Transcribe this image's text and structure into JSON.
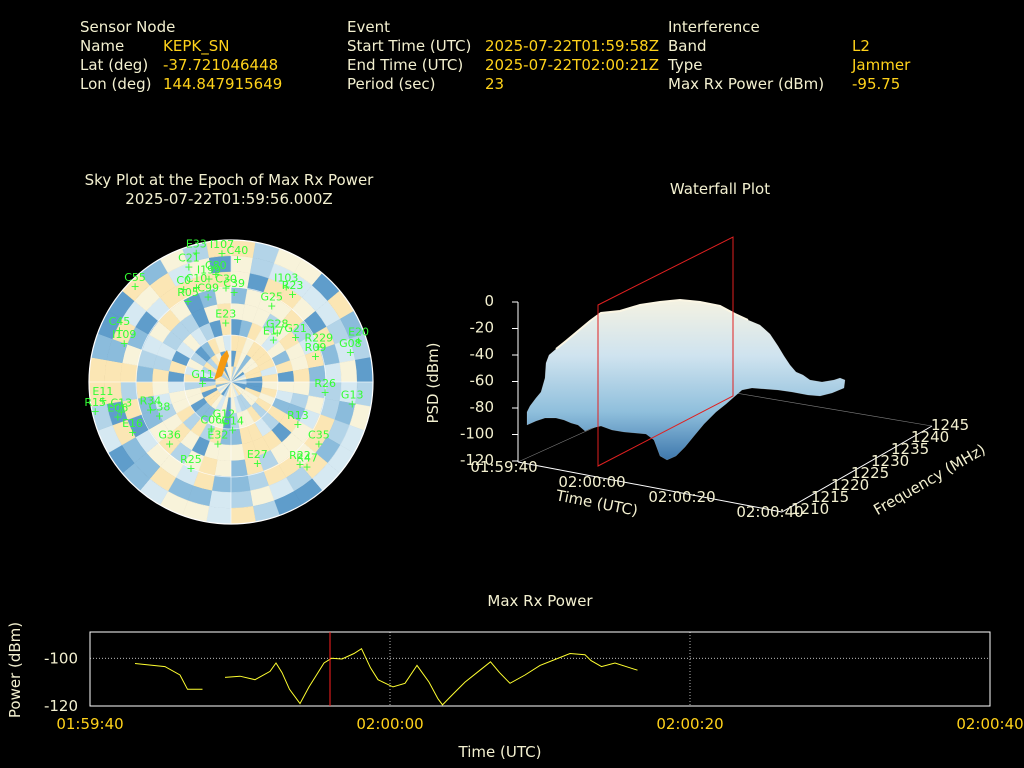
{
  "header": {
    "sensor": {
      "title": "Sensor Node",
      "name_label": "Name",
      "name_value": "KEPK_SN",
      "lat_label": "Lat (deg)",
      "lat_value": "-37.721046448",
      "lon_label": "Lon (deg)",
      "lon_value": "144.847915649"
    },
    "event": {
      "title": "Event",
      "start_label": "Start Time (UTC)",
      "start_value": "2025-07-22T01:59:58Z",
      "end_label": "End Time (UTC)",
      "end_value": "2025-07-22T02:00:21Z",
      "period_label": "Period (sec)",
      "period_value": "23"
    },
    "interference": {
      "title": "Interference",
      "band_label": "Band",
      "band_value": "L2",
      "type_label": "Type",
      "type_value": "Jammer",
      "power_label": "Max Rx Power (dBm)",
      "power_value": "-95.75"
    }
  },
  "sky_plot": {
    "title_line1": "Sky Plot at the Epoch of Max Rx Power",
    "title_line2": "2025-07-22T01:59:56.000Z",
    "satellites": [
      {
        "id": "E33",
        "az": 345,
        "el": 5
      },
      {
        "id": "I107",
        "az": 356,
        "el": 8
      },
      {
        "id": "C40",
        "az": 3,
        "el": 12
      },
      {
        "id": "C21",
        "az": 340,
        "el": 12
      },
      {
        "id": "C55",
        "az": 315,
        "el": 4
      },
      {
        "id": "C0",
        "az": 333,
        "el": 24
      },
      {
        "id": "C10",
        "az": 340,
        "el": 26
      },
      {
        "id": "I199",
        "az": 348,
        "el": 23
      },
      {
        "id": "C80",
        "az": 352,
        "el": 21
      },
      {
        "id": "C30",
        "az": 357,
        "el": 30
      },
      {
        "id": "C39",
        "az": 2,
        "el": 33
      },
      {
        "id": "R05",
        "az": 332,
        "el": 32
      },
      {
        "id": "C99",
        "az": 345,
        "el": 34
      },
      {
        "id": "E23",
        "az": 355,
        "el": 52
      },
      {
        "id": "I103",
        "az": 30,
        "el": 20
      },
      {
        "id": "R23",
        "az": 35,
        "el": 22
      },
      {
        "id": "G25",
        "az": 28,
        "el": 35
      },
      {
        "id": "G28",
        "az": 43,
        "el": 47
      },
      {
        "id": "G21",
        "az": 55,
        "el": 40
      },
      {
        "id": "E17",
        "az": 45,
        "el": 52
      },
      {
        "id": "R229",
        "az": 68,
        "el": 30
      },
      {
        "id": "R09",
        "az": 73,
        "el": 34
      },
      {
        "id": "G08",
        "az": 76,
        "el": 12
      },
      {
        "id": "E20",
        "az": 72,
        "el": 5
      },
      {
        "id": "G11",
        "az": 268,
        "el": 72
      },
      {
        "id": "C45",
        "az": 295,
        "el": 12
      },
      {
        "id": "I109",
        "az": 290,
        "el": 18
      },
      {
        "id": "E11",
        "az": 262,
        "el": 8
      },
      {
        "id": "R15",
        "az": 258,
        "el": 2
      },
      {
        "id": "C13",
        "az": 255,
        "el": 18
      },
      {
        "id": "R34",
        "az": 251,
        "el": 36
      },
      {
        "id": "E06",
        "az": 253,
        "el": 15
      },
      {
        "id": "C38",
        "az": 245,
        "el": 40
      },
      {
        "id": "E16",
        "az": 243,
        "el": 20
      },
      {
        "id": "G36",
        "az": 225,
        "el": 35
      },
      {
        "id": "C06",
        "az": 203,
        "el": 58
      },
      {
        "id": "G12",
        "az": 190,
        "el": 64
      },
      {
        "id": "E32",
        "az": 192,
        "el": 50
      },
      {
        "id": "G14",
        "az": 178,
        "el": 60
      },
      {
        "id": "R26",
        "az": 96,
        "el": 30
      },
      {
        "id": "G13",
        "az": 100,
        "el": 12
      },
      {
        "id": "R13",
        "az": 122,
        "el": 40
      },
      {
        "id": "C35",
        "az": 125,
        "el": 22
      },
      {
        "id": "E27",
        "az": 162,
        "el": 36
      },
      {
        "id": "R22",
        "az": 140,
        "el": 22
      },
      {
        "id": "R47",
        "az": 138,
        "el": 18
      },
      {
        "id": "R25",
        "az": 205,
        "el": 30
      }
    ]
  },
  "waterfall": {
    "title": "Waterfall Plot",
    "zlabel": "PSD (dBm)",
    "xlabel": "Time (UTC)",
    "ylabel": "Frequency (MHz)",
    "z_ticks": [
      "0",
      "-20",
      "-40",
      "-60",
      "-80",
      "-100",
      "-120"
    ],
    "time_ticks": [
      "01:59:40",
      "02:00:00",
      "02:00:20",
      "02:00:40"
    ],
    "freq_ticks": [
      "1210",
      "1215",
      "1220",
      "1225",
      "1230",
      "1235",
      "1240",
      "1245"
    ]
  },
  "chart_data": {
    "type": "line",
    "title": "Max Rx Power",
    "xlabel": "Time (UTC)",
    "ylabel": "Power (dBm)",
    "x_tick_labels": [
      "01:59:40",
      "02:00:00",
      "02:00:20",
      "02:00:40"
    ],
    "y_tick_labels": [
      "-100",
      "-120"
    ],
    "xlim_sec": [
      0,
      60
    ],
    "ylim": [
      -120,
      -89
    ],
    "segments": [
      [
        [
          3,
          -102.2
        ],
        [
          5,
          -103.5
        ],
        [
          6,
          -107.0
        ],
        [
          6.5,
          -113.0
        ],
        [
          7.5,
          -113.0
        ]
      ],
      [
        [
          9,
          -108.0
        ],
        [
          10,
          -107.5
        ],
        [
          11,
          -109.0
        ],
        [
          12,
          -105.5
        ],
        [
          12.4,
          -102.0
        ],
        [
          12.8,
          -106.0
        ],
        [
          13.3,
          -113.0
        ],
        [
          14,
          -119.0
        ],
        [
          14.6,
          -112.0
        ],
        [
          15,
          -108.0
        ],
        [
          15.6,
          -102.0
        ],
        [
          16.1,
          -100.0
        ],
        [
          16.8,
          -100.3
        ],
        [
          17.6,
          -98.0
        ],
        [
          18.1,
          -96.0
        ],
        [
          18.7,
          -104.0
        ],
        [
          19.2,
          -109.0
        ],
        [
          20.2,
          -112.0
        ],
        [
          21,
          -110.5
        ],
        [
          21.8,
          -103.0
        ],
        [
          22.6,
          -110.0
        ],
        [
          23.2,
          -117.0
        ],
        [
          23.5,
          -119.5
        ],
        [
          24.2,
          -115.0
        ],
        [
          25,
          -110.0
        ],
        [
          26,
          -105.0
        ],
        [
          26.7,
          -101.5
        ],
        [
          27.3,
          -106.0
        ],
        [
          28,
          -110.5
        ],
        [
          29,
          -107.0
        ],
        [
          30,
          -103.0
        ],
        [
          31,
          -100.5
        ],
        [
          32,
          -98.0
        ],
        [
          33,
          -98.5
        ],
        [
          33.4,
          -101.0
        ],
        [
          34.1,
          -103.5
        ],
        [
          35,
          -102.0
        ],
        [
          36,
          -104.0
        ],
        [
          36.5,
          -105.0
        ]
      ]
    ],
    "marker_x_sec": 16,
    "grid": "dotted",
    "line_color": "#ffff30",
    "marker_color": "#ff2020"
  }
}
